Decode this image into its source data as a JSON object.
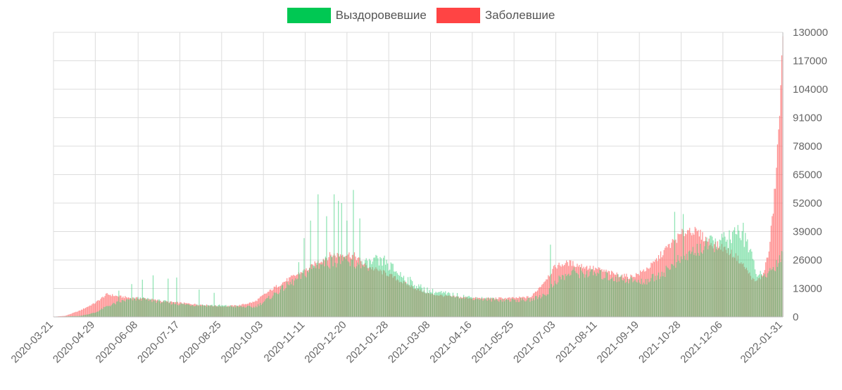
{
  "legend": {
    "recovered_label": "Выздоровевшие",
    "infected_label": "Заболевшие"
  },
  "colors": {
    "recovered_swatch": "#00c853",
    "infected_swatch": "#ff4444",
    "recovered_bar": "#2ecc71",
    "infected_bar": "#ff6b6b",
    "grid": "#dddddd"
  },
  "chart_data": {
    "type": "bar",
    "x_start": "2020-03-21",
    "x_end": "2022-01-31",
    "x_tick_labels": [
      "2020-03-21",
      "2020-04-29",
      "2020-06-08",
      "2020-07-17",
      "2020-08-25",
      "2020-10-03",
      "2020-11-11",
      "2020-12-20",
      "2021-01-28",
      "2021-03-08",
      "2021-04-16",
      "2021-05-25",
      "2021-07-03",
      "2021-08-11",
      "2021-09-19",
      "2021-10-28",
      "2021-12-06",
      "2022-01-31"
    ],
    "y_ticks": [
      0,
      13000,
      26000,
      39000,
      52000,
      65000,
      78000,
      91000,
      104000,
      117000,
      130000
    ],
    "ylim": [
      0,
      130000
    ],
    "y_axis_position": "right",
    "grid": true,
    "legend_position": "top-center",
    "series": [
      {
        "name": "Заболевшие",
        "points": [
          [
            "2020-03-21",
            100
          ],
          [
            "2020-04-01",
            500
          ],
          [
            "2020-04-15",
            3000
          ],
          [
            "2020-04-29",
            6500
          ],
          [
            "2020-05-10",
            10500
          ],
          [
            "2020-05-20",
            9500
          ],
          [
            "2020-06-01",
            8800
          ],
          [
            "2020-06-15",
            8500
          ],
          [
            "2020-07-01",
            7200
          ],
          [
            "2020-07-17",
            6500
          ],
          [
            "2020-08-01",
            5800
          ],
          [
            "2020-08-25",
            4900
          ],
          [
            "2020-09-10",
            5300
          ],
          [
            "2020-09-25",
            7000
          ],
          [
            "2020-10-03",
            10000
          ],
          [
            "2020-10-15",
            14000
          ],
          [
            "2020-10-25",
            17000
          ],
          [
            "2020-11-05",
            20000
          ],
          [
            "2020-11-15",
            22500
          ],
          [
            "2020-11-25",
            26000
          ],
          [
            "2020-12-05",
            28500
          ],
          [
            "2020-12-20",
            29000
          ],
          [
            "2020-12-28",
            28000
          ],
          [
            "2021-01-05",
            24000
          ],
          [
            "2021-01-15",
            22000
          ],
          [
            "2021-01-28",
            19500
          ],
          [
            "2021-02-10",
            16000
          ],
          [
            "2021-02-25",
            12500
          ],
          [
            "2021-03-08",
            10500
          ],
          [
            "2021-03-25",
            9500
          ],
          [
            "2021-04-16",
            8700
          ],
          [
            "2021-05-01",
            8500
          ],
          [
            "2021-05-25",
            8700
          ],
          [
            "2021-06-10",
            9200
          ],
          [
            "2021-06-20",
            15000
          ],
          [
            "2021-07-03",
            23500
          ],
          [
            "2021-07-15",
            25000
          ],
          [
            "2021-08-01",
            23000
          ],
          [
            "2021-08-11",
            22000
          ],
          [
            "2021-08-25",
            20000
          ],
          [
            "2021-09-10",
            18500
          ],
          [
            "2021-09-19",
            20000
          ],
          [
            "2021-10-01",
            24000
          ],
          [
            "2021-10-15",
            32000
          ],
          [
            "2021-10-28",
            38000
          ],
          [
            "2021-11-05",
            40500
          ],
          [
            "2021-11-15",
            38000
          ],
          [
            "2021-11-25",
            34000
          ],
          [
            "2021-12-06",
            32000
          ],
          [
            "2021-12-18",
            28000
          ],
          [
            "2021-12-28",
            22000
          ],
          [
            "2022-01-05",
            16000
          ],
          [
            "2022-01-12",
            19000
          ],
          [
            "2022-01-18",
            30000
          ],
          [
            "2022-01-22",
            50000
          ],
          [
            "2022-01-25",
            68000
          ],
          [
            "2022-01-28",
            95000
          ],
          [
            "2022-01-31",
            125000
          ]
        ]
      },
      {
        "name": "Выздоровевшие",
        "points": [
          [
            "2020-03-21",
            0
          ],
          [
            "2020-04-15",
            500
          ],
          [
            "2020-04-29",
            2000
          ],
          [
            "2020-05-10",
            5000
          ],
          [
            "2020-05-25",
            7500
          ],
          [
            "2020-06-08",
            8500
          ],
          [
            "2020-06-25",
            7500
          ],
          [
            "2020-07-17",
            6000
          ],
          [
            "2020-08-05",
            5500
          ],
          [
            "2020-08-25",
            5200
          ],
          [
            "2020-09-10",
            4800
          ],
          [
            "2020-09-25",
            4600
          ],
          [
            "2020-10-03",
            7000
          ],
          [
            "2020-10-20",
            13000
          ],
          [
            "2020-11-05",
            18000
          ],
          [
            "2020-11-20",
            24000
          ],
          [
            "2020-12-05",
            26000
          ],
          [
            "2020-12-20",
            25000
          ],
          [
            "2021-01-05",
            24000
          ],
          [
            "2021-01-15",
            26000
          ],
          [
            "2021-01-28",
            24000
          ],
          [
            "2021-02-10",
            19000
          ],
          [
            "2021-02-25",
            14000
          ],
          [
            "2021-03-08",
            12000
          ],
          [
            "2021-03-25",
            10500
          ],
          [
            "2021-04-16",
            9000
          ],
          [
            "2021-05-01",
            8200
          ],
          [
            "2021-05-25",
            7800
          ],
          [
            "2021-06-10",
            8000
          ],
          [
            "2021-06-25",
            11000
          ],
          [
            "2021-07-03",
            17000
          ],
          [
            "2021-07-20",
            21000
          ],
          [
            "2021-08-11",
            20000
          ],
          [
            "2021-08-25",
            18500
          ],
          [
            "2021-09-10",
            17500
          ],
          [
            "2021-09-19",
            16000
          ],
          [
            "2021-10-01",
            18000
          ],
          [
            "2021-10-15",
            22000
          ],
          [
            "2021-10-28",
            27000
          ],
          [
            "2021-11-10",
            31000
          ],
          [
            "2021-11-25",
            34000
          ],
          [
            "2021-12-06",
            35500
          ],
          [
            "2021-12-18",
            38000
          ],
          [
            "2021-12-28",
            37000
          ],
          [
            "2022-01-05",
            22000
          ],
          [
            "2022-01-12",
            18000
          ],
          [
            "2022-01-20",
            22000
          ],
          [
            "2022-01-25",
            25000
          ],
          [
            "2022-01-31",
            30000
          ]
        ],
        "spikes": [
          [
            "2020-05-21",
            12000
          ],
          [
            "2020-06-02",
            15000
          ],
          [
            "2020-06-12",
            17000
          ],
          [
            "2020-06-22",
            19000
          ],
          [
            "2020-07-06",
            17500
          ],
          [
            "2020-07-14",
            18000
          ],
          [
            "2020-08-04",
            12500
          ],
          [
            "2020-08-18",
            11000
          ],
          [
            "2020-11-05",
            25000
          ],
          [
            "2020-11-10",
            36000
          ],
          [
            "2020-11-16",
            44000
          ],
          [
            "2020-11-23",
            56000
          ],
          [
            "2020-12-01",
            46000
          ],
          [
            "2020-12-08",
            56000
          ],
          [
            "2020-12-12",
            53000
          ],
          [
            "2020-12-15",
            52000
          ],
          [
            "2020-12-20",
            44000
          ],
          [
            "2020-12-26",
            58000
          ],
          [
            "2021-01-01",
            45000
          ],
          [
            "2021-01-24",
            28000
          ],
          [
            "2021-06-28",
            33000
          ],
          [
            "2021-10-22",
            48000
          ],
          [
            "2021-10-30",
            47000
          ],
          [
            "2021-12-20",
            42000
          ],
          [
            "2021-12-25",
            43000
          ]
        ]
      }
    ]
  }
}
